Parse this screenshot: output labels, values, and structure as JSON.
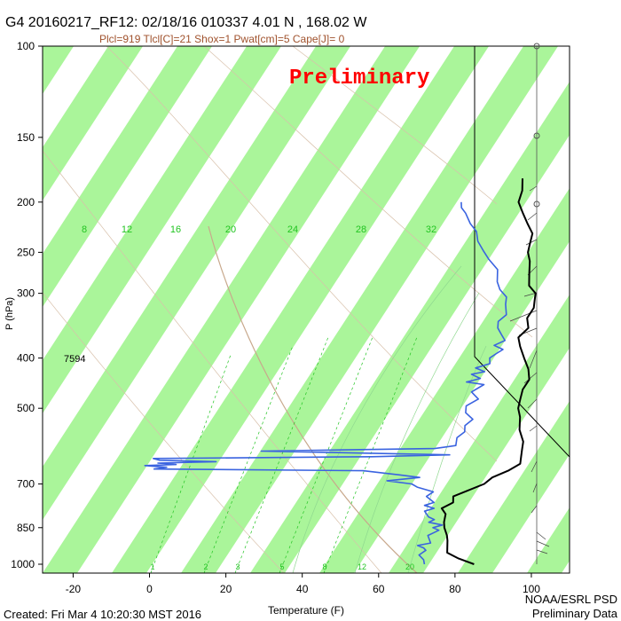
{
  "header": {
    "title": "G4 20160217_RF12: 02/18/16 010337   4.01 N , 168.02 W",
    "subtitle": "Plcl=919 Tlcl[C]=21 Shox=1 Pwat[cm]=5 Cape[J]= 0",
    "watermark": "Preliminary"
  },
  "footer": {
    "created": "Created: Fri Mar  4 10:20:30 MST 2016",
    "credit_line1": "NOAA/ESRL PSD",
    "credit_line2": "Preliminary Data"
  },
  "annotations": {
    "height_label": "7594"
  },
  "chart_data": {
    "type": "line",
    "title": "G4 20160217_RF12: 02/18/16 010337   4.01 N , 168.02 W",
    "subtitle": "Plcl=919 Tlcl[C]=21 Shox=1 Pwat[cm]=5 Cape[J]= 0",
    "xlabel": "Temperature (F)",
    "ylabel": "P (hPa)",
    "xlim": [
      -28,
      110
    ],
    "ylim": [
      1000,
      100
    ],
    "y_scale": "log",
    "x_ticks": [
      "-20",
      "0",
      "20",
      "40",
      "60",
      "80",
      "100"
    ],
    "x_tick_values": [
      -20,
      0,
      20,
      40,
      60,
      80,
      100
    ],
    "y_ticks": [
      "100",
      "150",
      "200",
      "250",
      "300",
      "400",
      "500",
      "700",
      "850",
      "1000"
    ],
    "y_tick_values": [
      100,
      150,
      200,
      250,
      300,
      400,
      500,
      700,
      850,
      1000
    ],
    "mixing_ratio_labels": [
      "8",
      "12",
      "16",
      "20",
      "24",
      "28",
      "32"
    ],
    "mixing_ratio_lower_labels": [
      "1",
      "2",
      "3",
      "5",
      "8",
      "12",
      "20"
    ],
    "colors": {
      "band": "#aaf59a",
      "temperature": "#000000",
      "dewpoint": "#3a63e0",
      "dry_adiabat": "#c8a88c",
      "mixing_ratio": "#22c422",
      "watermark": "#ff0000",
      "subtitle": "#a0522d"
    },
    "series": [
      {
        "name": "Temperature",
        "points": [
          [
            85,
            1000
          ],
          [
            80,
            975
          ],
          [
            76,
            950
          ],
          [
            74,
            900
          ],
          [
            73,
            880
          ],
          [
            71,
            850
          ],
          [
            70,
            830
          ],
          [
            69,
            800
          ],
          [
            67,
            780
          ],
          [
            69,
            760
          ],
          [
            68,
            740
          ],
          [
            74,
            700
          ],
          [
            75,
            680
          ],
          [
            78,
            660
          ],
          [
            80,
            640
          ],
          [
            79,
            620
          ],
          [
            78,
            600
          ],
          [
            77,
            580
          ],
          [
            74,
            550
          ],
          [
            72,
            520
          ],
          [
            70,
            500
          ],
          [
            69,
            480
          ],
          [
            68,
            460
          ],
          [
            68,
            440
          ],
          [
            66,
            420
          ],
          [
            63,
            400
          ],
          [
            60,
            380
          ],
          [
            58,
            365
          ],
          [
            59,
            350
          ],
          [
            57,
            335
          ],
          [
            57,
            320
          ],
          [
            56,
            310
          ],
          [
            55,
            300
          ],
          [
            52,
            290
          ],
          [
            50,
            275
          ],
          [
            48,
            260
          ],
          [
            46,
            250
          ],
          [
            45,
            240
          ],
          [
            44,
            230
          ],
          [
            41,
            220
          ],
          [
            38,
            210
          ],
          [
            35,
            200
          ],
          [
            34,
            190
          ],
          [
            32,
            180
          ]
        ]
      },
      {
        "name": "Dewpoint",
        "points": [
          [
            72,
            1000
          ],
          [
            71,
            980
          ],
          [
            69,
            960
          ],
          [
            70,
            940
          ],
          [
            69,
            930
          ],
          [
            67,
            920
          ],
          [
            70,
            910
          ],
          [
            68,
            880
          ],
          [
            69,
            870
          ],
          [
            70,
            860
          ],
          [
            68,
            850
          ],
          [
            70,
            840
          ],
          [
            66,
            830
          ],
          [
            67,
            820
          ],
          [
            65,
            810
          ],
          [
            63,
            790
          ],
          [
            65,
            780
          ],
          [
            62,
            770
          ],
          [
            64,
            760
          ],
          [
            61,
            740
          ],
          [
            62,
            725
          ],
          [
            57,
            710
          ],
          [
            55,
            700
          ],
          [
            48,
            690
          ],
          [
            56,
            680
          ],
          [
            50,
            672
          ],
          [
            40,
            660
          ],
          [
            -15,
            655
          ],
          [
            -12,
            650
          ],
          [
            -18,
            645
          ],
          [
            -10,
            642
          ],
          [
            -15,
            638
          ],
          [
            0,
            634
          ],
          [
            -15,
            630
          ],
          [
            -17,
            625
          ],
          [
            40,
            620
          ],
          [
            60,
            615
          ],
          [
            10,
            605
          ],
          [
            55,
            598
          ],
          [
            60,
            590
          ],
          [
            59,
            570
          ],
          [
            60,
            555
          ],
          [
            59,
            540
          ],
          [
            60,
            525
          ],
          [
            57,
            510
          ],
          [
            56,
            495
          ],
          [
            58,
            480
          ],
          [
            55,
            465
          ],
          [
            57,
            450
          ],
          [
            52,
            445
          ],
          [
            55,
            438
          ],
          [
            52,
            430
          ],
          [
            55,
            425
          ],
          [
            52,
            418
          ],
          [
            55,
            410
          ],
          [
            54,
            400
          ],
          [
            55,
            392
          ],
          [
            56,
            385
          ],
          [
            53,
            378
          ],
          [
            55,
            370
          ],
          [
            53,
            360
          ],
          [
            51,
            350
          ],
          [
            50,
            340
          ],
          [
            51,
            330
          ],
          [
            49,
            315
          ],
          [
            48,
            305
          ],
          [
            45,
            295
          ],
          [
            43,
            285
          ],
          [
            41,
            270
          ],
          [
            37,
            258
          ],
          [
            34,
            248
          ],
          [
            31,
            238
          ],
          [
            29,
            228
          ],
          [
            26,
            220
          ],
          [
            23,
            210
          ],
          [
            21,
            205
          ],
          [
            20,
            200
          ]
        ]
      }
    ]
  }
}
